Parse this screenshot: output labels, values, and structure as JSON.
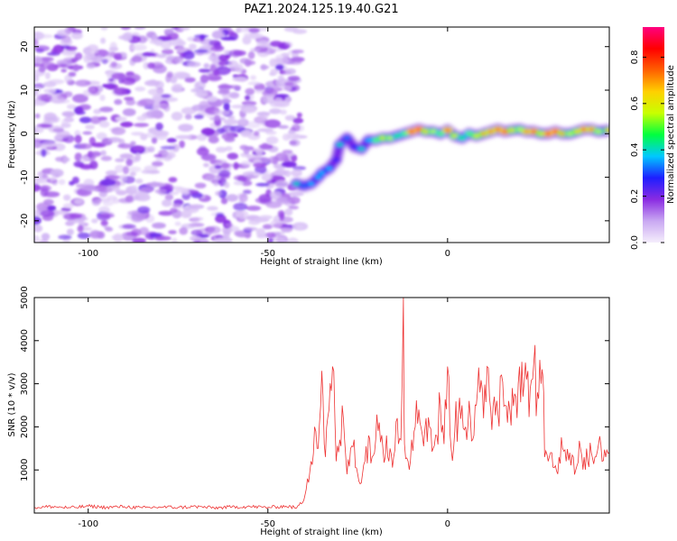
{
  "chart_data": [
    {
      "type": "heatmap",
      "title": "PAZ1.2024.125.19.40.G21",
      "xlabel": "Height of straight line (km)",
      "ylabel": "Frequency (Hz)",
      "xlim": [
        -115,
        45
      ],
      "ylim": [
        -25,
        24.5
      ],
      "xticks": [
        -100,
        -50,
        0
      ],
      "xtick_labels": [
        "-100",
        "-50",
        "0"
      ],
      "yticks": [
        -20,
        -10,
        0,
        10,
        20
      ],
      "ytick_labels": [
        "-20",
        "-10",
        "0",
        "10",
        "20"
      ],
      "colorbar": {
        "label": "Normalized spectral amplitude",
        "range": [
          0,
          0.93
        ],
        "ticks": [
          0.0,
          0.2,
          0.4,
          0.6,
          0.8
        ],
        "tick_labels": [
          "0.0",
          "0.2",
          "0.4",
          "0.6",
          "0.8"
        ],
        "colors": [
          "#f5eefc",
          "#c9a8f2",
          "#8a2be2",
          "#1e1eff",
          "#00c8ff",
          "#00ff40",
          "#c8ff00",
          "#ffd000",
          "#ff6000",
          "#ff0000",
          "#ff0080"
        ]
      },
      "noise_region": {
        "x_range": [
          -115,
          -41
        ],
        "y_range": [
          -25,
          24.5
        ]
      },
      "signal_ridge": {
        "x": [
          -42,
          -40,
          -38,
          -36,
          -35,
          -33,
          -31,
          -30,
          -28,
          -26,
          -24,
          -22,
          -20,
          -18,
          -16,
          -14,
          -12,
          -10,
          -8,
          -6,
          -4,
          -2,
          0,
          2,
          4,
          6,
          8,
          10,
          12,
          14,
          16,
          18,
          20,
          22,
          24,
          26,
          28,
          30,
          32,
          34,
          36,
          38,
          40,
          42,
          45
        ],
        "frequency": [
          -11.5,
          -12,
          -11.5,
          -10,
          -9,
          -8,
          -6,
          -2.5,
          -1,
          -3,
          -3.5,
          -1.5,
          -1.5,
          -1,
          -1,
          -0.5,
          0,
          0.5,
          1,
          0.5,
          0.5,
          0,
          0.8,
          -0.5,
          -1,
          0,
          -0.5,
          0,
          0.5,
          1,
          0.5,
          0.8,
          1,
          0.5,
          0.5,
          0,
          0,
          0.5,
          0,
          0,
          0.5,
          1,
          1,
          0.5,
          0.8
        ],
        "amplitude": [
          0.45,
          0.35,
          0.4,
          0.4,
          0.4,
          0.4,
          0.3,
          0.45,
          0.35,
          0.3,
          0.45,
          0.4,
          0.55,
          0.65,
          0.6,
          0.5,
          0.55,
          0.9,
          0.95,
          0.7,
          0.6,
          0.55,
          0.85,
          0.65,
          0.5,
          0.55,
          0.65,
          0.75,
          0.8,
          0.85,
          0.9,
          0.7,
          0.6,
          0.8,
          0.88,
          0.65,
          0.9,
          0.92,
          0.75,
          0.6,
          0.7,
          0.85,
          0.8,
          0.6,
          0.75
        ]
      }
    },
    {
      "type": "line",
      "xlabel": "Height of straight line (km)",
      "ylabel": "SNR (10 * v/v)",
      "xlim": [
        -115,
        45
      ],
      "ylim": [
        0,
        5000
      ],
      "xticks": [
        -100,
        -50,
        0
      ],
      "xtick_labels": [
        "-100",
        "-50",
        "0"
      ],
      "yticks": [
        1000,
        2000,
        3000,
        4000,
        5000
      ],
      "ytick_labels": [
        "1000",
        "2000",
        "3000",
        "4000",
        "5000"
      ],
      "color": "#ee3333",
      "series": [
        {
          "x": [
            -115,
            -110,
            -105,
            -100,
            -95,
            -90,
            -85,
            -80,
            -75,
            -70,
            -65,
            -60,
            -55,
            -50,
            -45,
            -42,
            -40,
            -39,
            -38,
            -37,
            -36,
            -35,
            -34,
            -33,
            -32,
            -31,
            -30,
            -29,
            -28,
            -27,
            -26,
            -25,
            -24,
            -23,
            -22,
            -21,
            -20,
            -19,
            -18,
            -17,
            -16,
            -15,
            -14,
            -13,
            -12.3,
            -12,
            -11,
            -10,
            -9,
            -8,
            -7,
            -6,
            -5,
            -4,
            -3,
            -2,
            -1,
            0,
            1,
            2,
            3,
            4,
            5,
            6,
            7,
            8,
            9,
            10,
            11,
            12,
            13,
            14,
            15,
            16,
            17,
            18,
            19,
            20,
            21,
            22,
            23,
            24,
            25,
            26,
            26.5,
            27,
            28,
            29,
            30,
            31,
            32,
            33,
            34,
            35,
            36,
            37,
            38,
            39,
            40,
            41,
            42,
            43,
            44,
            45
          ],
          "values": [
            130,
            150,
            120,
            160,
            130,
            150,
            120,
            140,
            130,
            150,
            120,
            140,
            150,
            130,
            160,
            120,
            300,
            800,
            1200,
            2000,
            1500,
            3300,
            1300,
            2400,
            3400,
            1200,
            1700,
            2200,
            900,
            1500,
            1700,
            900,
            700,
            1200,
            1800,
            1300,
            1700,
            2100,
            1500,
            1800,
            1500,
            1300,
            2200,
            1700,
            5000,
            1600,
            1200,
            1700,
            2000,
            2400,
            1800,
            2200,
            2000,
            1500,
            1800,
            2500,
            1600,
            3400,
            1500,
            1900,
            2300,
            2500,
            2000,
            2600,
            1700,
            2500,
            2800,
            2200,
            3400,
            2400,
            2700,
            2300,
            3200,
            2500,
            2600,
            2900,
            2700,
            3400,
            2700,
            3100,
            2900,
            3500,
            2800,
            3000,
            3200,
            1300,
            1200,
            1400,
            1100,
            1300,
            1500,
            1200,
            1400,
            1300,
            1100,
            1500,
            1300,
            1200,
            1400,
            1300,
            1600,
            1200,
            1300,
            1400
          ]
        }
      ]
    }
  ]
}
